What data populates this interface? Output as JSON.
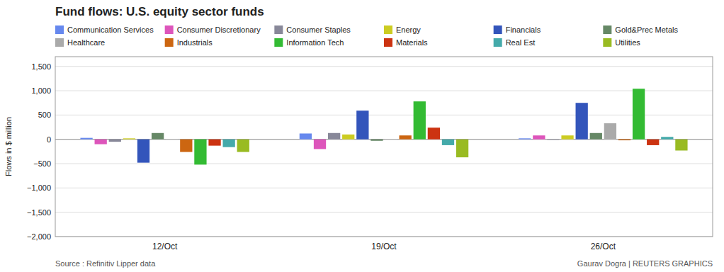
{
  "chart_data": {
    "type": "bar",
    "title": "Fund flows: U.S. equity sector funds",
    "y_label": "Flows in $ million",
    "annotations": [
      "Source : Refinitiv Lipper data",
      "Gaurav Dogra | REUTERS GRAPHICS"
    ],
    "categories": [
      "12/Oct",
      "19/Oct",
      "26/Oct"
    ],
    "series": [
      {
        "name": "Communication Services",
        "color": "#6688ee",
        "values": [
          30,
          120,
          20
        ]
      },
      {
        "name": "Consumer Discretionary",
        "color": "#dd55bb",
        "values": [
          -100,
          -200,
          80
        ]
      },
      {
        "name": "Consumer Staples",
        "color": "#888899",
        "values": [
          -50,
          130,
          -10
        ]
      },
      {
        "name": "Energy",
        "color": "#cccc22",
        "values": [
          20,
          100,
          80
        ]
      },
      {
        "name": "Financials",
        "color": "#3355bb",
        "values": [
          -480,
          590,
          750
        ]
      },
      {
        "name": "Gold&Prec Metals",
        "color": "#668866",
        "values": [
          130,
          -30,
          130
        ]
      },
      {
        "name": "Healthcare",
        "color": "#aaaaaa",
        "values": [
          10,
          10,
          330
        ]
      },
      {
        "name": "Industrials",
        "color": "#cc6611",
        "values": [
          -260,
          80,
          -20
        ]
      },
      {
        "name": "Information Tech",
        "color": "#33bb33",
        "values": [
          -520,
          780,
          1040
        ]
      },
      {
        "name": "Materials",
        "color": "#cc3311",
        "values": [
          -130,
          240,
          -120
        ]
      },
      {
        "name": "Real Est",
        "color": "#44aaaa",
        "values": [
          -160,
          -120,
          50
        ]
      },
      {
        "name": "Utilities",
        "color": "#99bb22",
        "values": [
          -260,
          -370,
          -230
        ]
      }
    ],
    "ylim": [
      -2000,
      1700
    ],
    "yticks": [
      {
        "value": -2000,
        "label": "−2,000"
      },
      {
        "value": -1500,
        "label": "−1,500"
      },
      {
        "value": -1000,
        "label": "−1,000"
      },
      {
        "value": -500,
        "label": "−500"
      },
      0,
      500,
      {
        "value": 1000,
        "label": "1,000"
      },
      {
        "value": 1500,
        "label": "1,500"
      }
    ],
    "grid": true,
    "legend": "top"
  }
}
